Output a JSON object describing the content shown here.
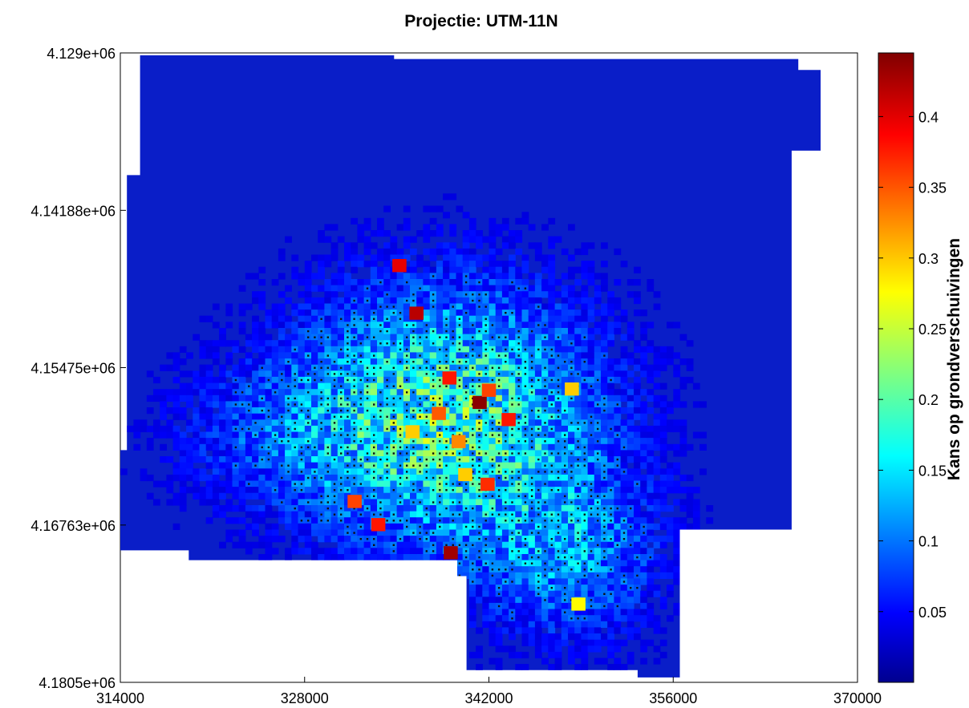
{
  "chart_data": {
    "type": "heatmap",
    "title": "Projectie: UTM-11N",
    "xlabel": "",
    "ylabel": "",
    "colorbar_label": "Kans op grondverschuivingen",
    "colormap": "jet",
    "xlim": [
      314000,
      370000
    ],
    "ylim": [
      4129000,
      4180500
    ],
    "y_direction": "downward",
    "x_ticks": [
      "314000",
      "328000",
      "342000",
      "356000",
      "370000"
    ],
    "y_ticks": [
      "4.129e+06",
      "4.14188e+06",
      "4.15475e+06",
      "4.16763e+06",
      "4.1805e+06"
    ],
    "y_tick_values": [
      4129000,
      4141880,
      4154750,
      4167630,
      4180500
    ],
    "x_tick_values": [
      314000,
      328000,
      342000,
      356000,
      370000
    ],
    "colorbar_range": [
      0.0,
      0.445
    ],
    "colorbar_ticks": [
      "0.05",
      "0.1",
      "0.15",
      "0.2",
      "0.25",
      "0.3",
      "0.35",
      "0.4"
    ],
    "colorbar_tick_values": [
      0.05,
      0.1,
      0.15,
      0.2,
      0.25,
      0.3,
      0.35,
      0.4
    ],
    "grid": false,
    "study_area_outline": [
      [
        316200,
        4129200
      ],
      [
        334800,
        4129200
      ],
      [
        334800,
        4129500
      ],
      [
        365500,
        4129500
      ],
      [
        365500,
        4130400
      ],
      [
        367200,
        4130400
      ],
      [
        367200,
        4137000
      ],
      [
        365000,
        4137000
      ],
      [
        365000,
        4168000
      ],
      [
        356500,
        4168000
      ],
      [
        356500,
        4180100
      ],
      [
        353300,
        4180100
      ],
      [
        353300,
        4179500
      ],
      [
        340300,
        4179500
      ],
      [
        340300,
        4171800
      ],
      [
        339600,
        4171800
      ],
      [
        339600,
        4170500
      ],
      [
        319200,
        4170500
      ],
      [
        319200,
        4169700
      ],
      [
        313900,
        4169700
      ],
      [
        313900,
        4161500
      ],
      [
        314500,
        4161500
      ],
      [
        314500,
        4139000
      ],
      [
        315500,
        4139000
      ],
      [
        315500,
        4129200
      ]
    ],
    "hotspots": [
      {
        "x": 341300,
        "y": 4157600,
        "value": 0.44
      },
      {
        "x": 339000,
        "y": 4155600,
        "value": 0.38
      },
      {
        "x": 335200,
        "y": 4146400,
        "value": 0.4
      },
      {
        "x": 336500,
        "y": 4150300,
        "value": 0.42
      },
      {
        "x": 342000,
        "y": 4156600,
        "value": 0.36
      },
      {
        "x": 338200,
        "y": 4158500,
        "value": 0.35
      },
      {
        "x": 343500,
        "y": 4159000,
        "value": 0.38
      },
      {
        "x": 341900,
        "y": 4164300,
        "value": 0.37
      },
      {
        "x": 331800,
        "y": 4165700,
        "value": 0.36
      },
      {
        "x": 333600,
        "y": 4167600,
        "value": 0.38
      },
      {
        "x": 339100,
        "y": 4169900,
        "value": 0.43
      },
      {
        "x": 348300,
        "y": 4156500,
        "value": 0.3
      },
      {
        "x": 348800,
        "y": 4174100,
        "value": 0.28
      },
      {
        "x": 339700,
        "y": 4160800,
        "value": 0.33
      },
      {
        "x": 340200,
        "y": 4163500,
        "value": 0.3
      },
      {
        "x": 336200,
        "y": 4160000,
        "value": 0.3
      }
    ]
  }
}
